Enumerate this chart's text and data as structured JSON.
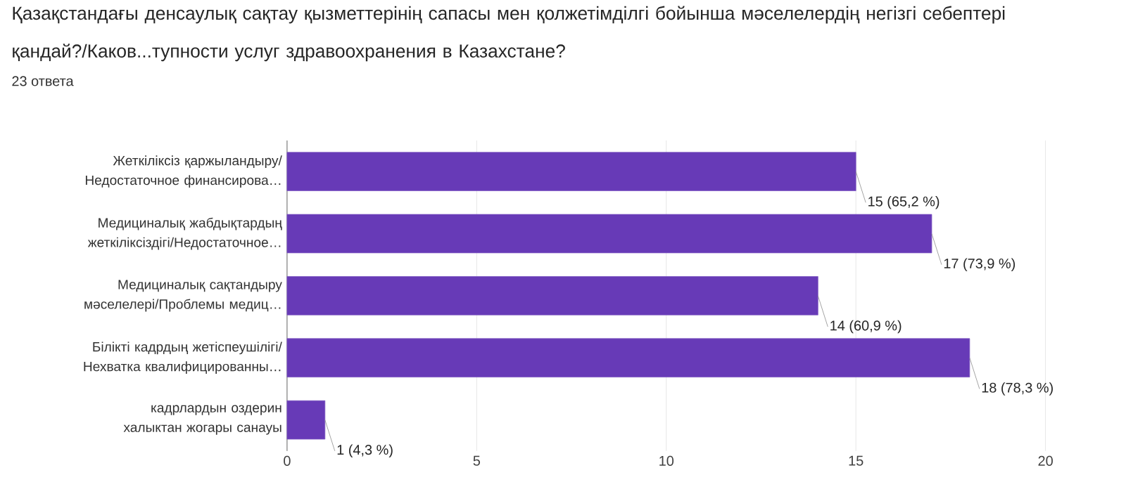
{
  "chart_data": {
    "type": "bar",
    "orientation": "horizontal",
    "title": "Қазақстандағы денсаулық сақтау қызметтерінің сапасы мен қолжетімділгі бойынша мәселелердің негізгі себептері қандай?/Каков...тупности услуг здравоохранения в Казахстане?",
    "subtitle": "23 ответа",
    "categories": [
      "Жеткіліксіз қаржыландыру/ Недостаточное финансирова…",
      "Медициналық жабдықтардың жеткіліксіздігі/Недостаточное…",
      "Медициналық сақтандыру мәселелері/Проблемы медиц…",
      "Білікті кадрдың жетіспеушілігі/ Нехватка квалифицированны…",
      "кадрлардын оздерин халыктан жогары санауы"
    ],
    "values": [
      15,
      17,
      14,
      18,
      1
    ],
    "value_labels": [
      "15 (65,2 %)",
      "17 (73,9 %)",
      "14 (60,9 %)",
      "18 (78,3 %)",
      "1 (4,3 %)"
    ],
    "color": "#673ab7",
    "xlim": [
      0,
      20
    ],
    "xticks": [
      0,
      5,
      10,
      15,
      20
    ],
    "grid": "x"
  }
}
